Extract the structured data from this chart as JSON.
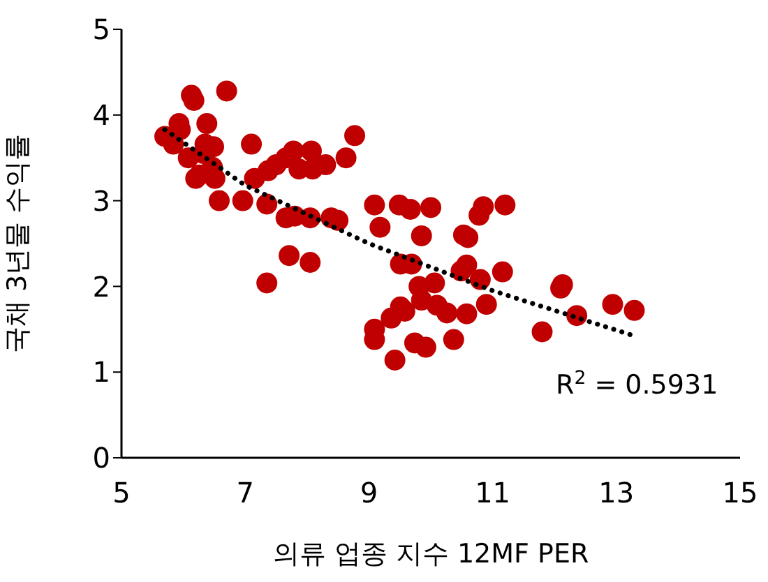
{
  "chart_data": {
    "type": "scatter",
    "xlabel": "의류 업종 지수 12MF PER",
    "ylabel": "국채 3년물 수익률",
    "xlim": [
      5,
      15
    ],
    "xticks": [
      5,
      7,
      9,
      11,
      13,
      15
    ],
    "ylim": [
      0,
      5
    ],
    "yticks": [
      0,
      1,
      2,
      3,
      4,
      5
    ],
    "grid": false,
    "legend": false,
    "marker": "circle",
    "annotations": [
      "R$^{2}$ = 0.5931"
    ],
    "series": [
      {
        "color": "#c00000",
        "x": [
          5.7,
          5.84,
          5.93,
          6.13,
          6.17,
          6.7,
          5.95,
          6.38,
          6.35,
          6.08,
          6.33,
          6.26,
          6.2,
          6.49,
          6.47,
          6.58,
          6.51,
          7.1,
          7.15,
          6.96,
          7.37,
          7.5,
          7.66,
          7.78,
          7.87,
          8.07,
          8.09,
          8.3,
          8.63,
          8.77,
          7.35,
          7.66,
          7.8,
          8.05,
          8.39,
          8.5,
          7.71,
          8.05,
          7.35,
          9.09,
          9.49,
          9.67,
          10.0,
          10.85,
          11.2,
          10.78,
          9.18,
          9.85,
          10.53,
          10.6,
          9.51,
          9.69,
          10.49,
          10.58,
          10.8,
          11.16,
          9.81,
          10.06,
          9.85,
          10.1,
          10.26,
          10.58,
          10.9,
          9.51,
          9.58,
          9.36,
          9.09,
          9.09,
          9.74,
          9.92,
          10.37,
          9.42,
          12.1,
          12.13,
          11.8,
          12.36,
          12.94,
          13.29
        ],
        "values": [
          3.75,
          3.66,
          3.9,
          4.23,
          4.17,
          4.28,
          3.83,
          3.9,
          3.66,
          3.5,
          3.55,
          3.3,
          3.26,
          3.63,
          3.39,
          3.0,
          3.26,
          3.66,
          3.26,
          3.0,
          3.35,
          3.42,
          3.5,
          3.58,
          3.37,
          3.58,
          3.37,
          3.42,
          3.5,
          3.76,
          2.96,
          2.8,
          2.82,
          2.8,
          2.8,
          2.77,
          2.36,
          2.28,
          2.04,
          2.95,
          2.95,
          2.9,
          2.92,
          2.93,
          2.95,
          2.83,
          2.69,
          2.59,
          2.6,
          2.57,
          2.26,
          2.26,
          2.18,
          2.25,
          2.08,
          2.17,
          2.0,
          2.04,
          1.84,
          1.78,
          1.69,
          1.68,
          1.79,
          1.76,
          1.71,
          1.63,
          1.5,
          1.38,
          1.34,
          1.29,
          1.38,
          1.14,
          1.98,
          2.02,
          1.47,
          1.66,
          1.79,
          1.72
        ]
      },
      {
        "type": "line",
        "color": "#000000",
        "line_style": "dotted",
        "marker": "none",
        "x": [
          5.7,
          7,
          9,
          11,
          13.3
        ],
        "values": [
          3.83,
          3.18,
          2.5,
          1.95,
          1.42
        ]
      }
    ]
  }
}
